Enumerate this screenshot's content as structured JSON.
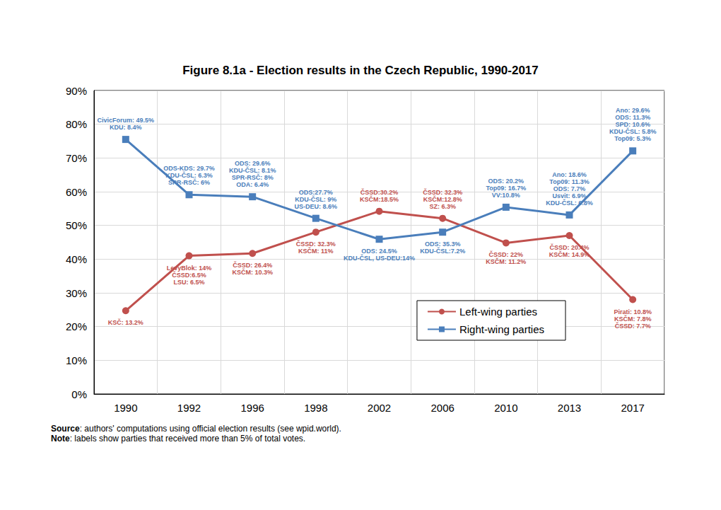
{
  "chart_data": {
    "type": "line",
    "title": "Figure 8.1a - Election results in the Czech Republic, 1990-2017",
    "categories": [
      "1990",
      "1992",
      "1996",
      "1998",
      "2002",
      "2006",
      "2010",
      "2013",
      "2017"
    ],
    "ylim": [
      0,
      90
    ],
    "yticks": [
      {
        "value": 0,
        "label": "0%"
      },
      {
        "value": 10,
        "label": "10%"
      },
      {
        "value": 20,
        "label": "20%"
      },
      {
        "value": 30,
        "label": "30%"
      },
      {
        "value": 40,
        "label": "40%"
      },
      {
        "value": 50,
        "label": "50%"
      },
      {
        "value": 60,
        "label": "60%"
      },
      {
        "value": 70,
        "label": "70%"
      },
      {
        "value": 80,
        "label": "80%"
      },
      {
        "value": 90,
        "label": "90%"
      }
    ],
    "grid": true,
    "legend": "lower right",
    "series": [
      {
        "name": "Left-wing parties",
        "color": "#c0504d",
        "marker": "circle",
        "values": [
          24.7,
          41.0,
          41.7,
          48.0,
          54.2,
          52.1,
          44.8,
          47.0,
          28.0
        ],
        "annotations": [
          [
            "KSČ: 13.2%"
          ],
          [
            "LevyBlok: 14%",
            "ČSSD:6.5%",
            "LSU: 6.5%"
          ],
          [
            "ČSSD: 26.4%",
            "KSČM: 10.3%"
          ],
          [
            "ČSSD: 32.3%",
            "KSČM: 11%"
          ],
          [
            "ČSSD:30.2%",
            "KSČM:18.5%"
          ],
          [
            "ČSSD: 32.3%",
            "KSČM:12.8%",
            "SZ: 6.3%"
          ],
          [
            "ČSSD: 22%",
            "KSČM: 11.2%"
          ],
          [
            "ČSSD: 20.4%",
            "KSČM: 14.9%"
          ],
          [
            "Pirati: 10.8%",
            "KSČM: 7.8%",
            "ČSSD: 7.7%"
          ]
        ]
      },
      {
        "name": "Right-wing parties",
        "color": "#4a7ebb",
        "marker": "square",
        "values": [
          75.5,
          59.1,
          58.5,
          52.1,
          45.9,
          48.0,
          55.4,
          53.1,
          72.1
        ],
        "annotations": [
          [
            "CivicForum: 49.5%",
            "KDU: 8.4%"
          ],
          [
            "ODS-KDS: 29.7%",
            "KDU-ČSL: 6.3%",
            "SPR-RSČ: 6%"
          ],
          [
            "ODS: 29.6%",
            "KDU-ČSL: 8.1%",
            "SPR-RSČ: 8%",
            "ODA: 6.4%"
          ],
          [
            "ODS:27.7%",
            "KDU-ČSL: 9%",
            "US-DEU: 8.6%"
          ],
          [
            "ODS: 24.5%",
            "KDU-ČSL, US-DEU:14%"
          ],
          [
            "ODS: 35.3%",
            "KDU-ČSL:7.2%"
          ],
          [
            "ODS: 20.2%",
            "Top09: 16.7%",
            "VV:10.8%"
          ],
          [
            "Ano: 18.6%",
            "Top09: 11.3%",
            "ODS: 7.7%",
            "Usvit: 6.9%",
            "KDU-ČSL: 6.8%"
          ],
          [
            "Ano: 29.6%",
            "ODS: 11.3%",
            "SPD: 10.6%",
            "KDU-ČSL: 5.8%",
            "Top09: 5.3%"
          ]
        ]
      }
    ],
    "notes": [
      {
        "label": "Source",
        "text": ": authors' computations using official election results (see wpid.world)."
      },
      {
        "label": "Note",
        "text": ": labels show parties that received more than 5% of total votes."
      }
    ]
  }
}
